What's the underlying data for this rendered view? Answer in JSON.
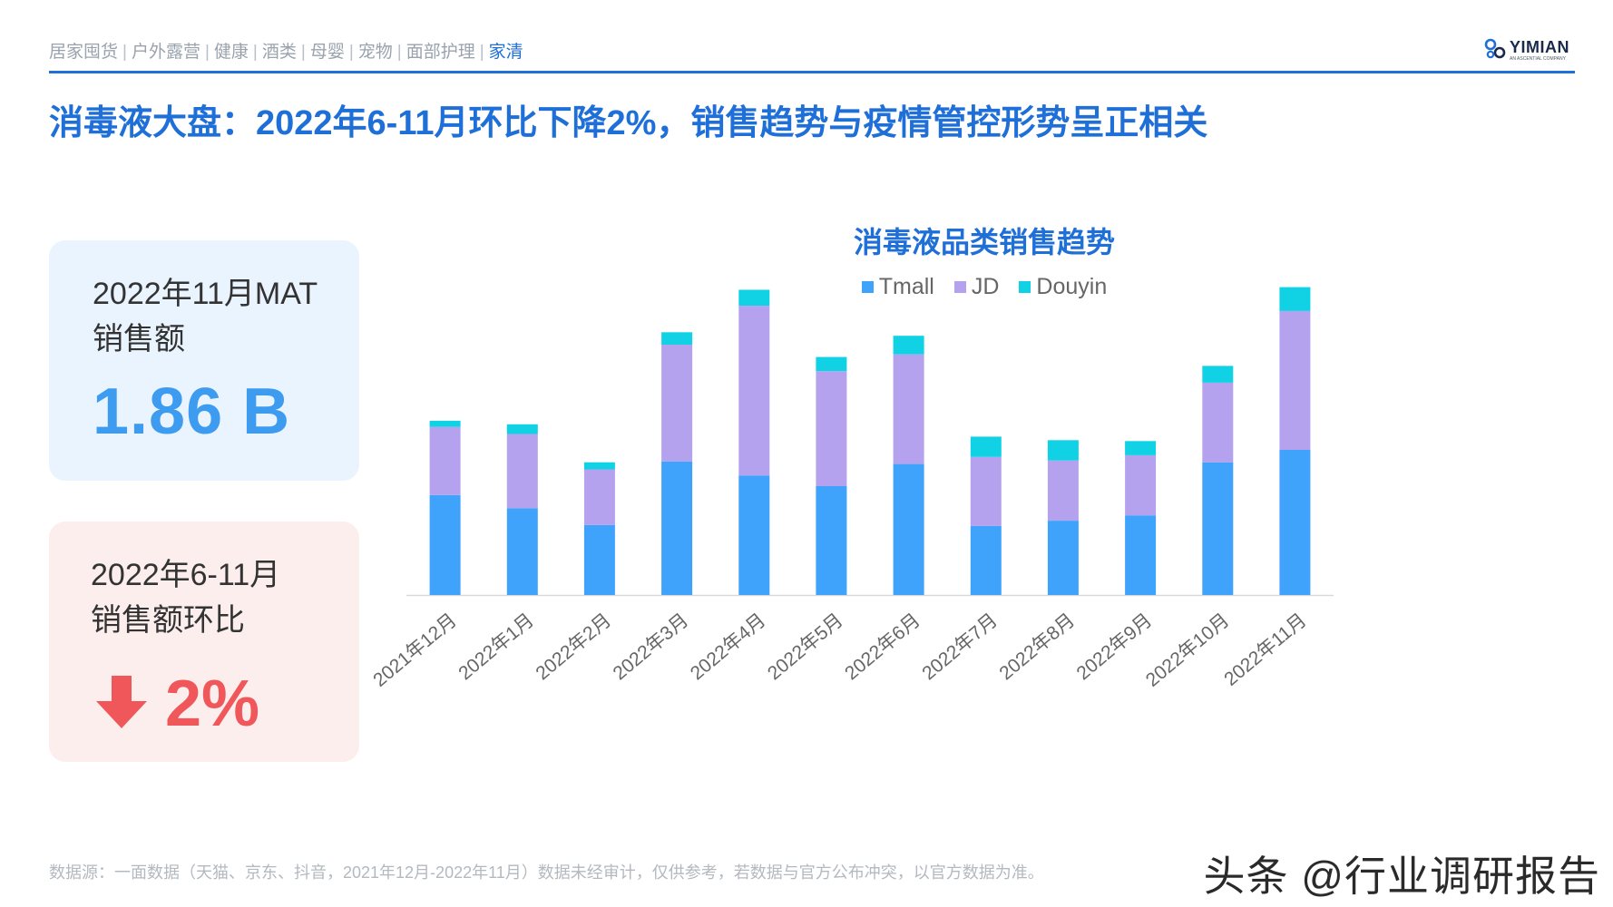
{
  "nav": {
    "items": [
      "居家囤货",
      "户外露营",
      "健康",
      "酒类",
      "母婴",
      "宠物",
      "面部护理",
      "家清"
    ],
    "active_index": 7,
    "separator": "|"
  },
  "brand": {
    "name": "YIMIAN",
    "tagline": "AN ASCENTIAL COMPANY"
  },
  "title": "消毒液大盘：2022年6-11月环比下降2%，销售趋势与疫情管控形势呈正相关",
  "kpi_mat": {
    "label_line1": "2022年11月MAT",
    "label_line2": "销售额",
    "value": "1.86 B"
  },
  "kpi_change": {
    "label_line1": "2022年6-11月",
    "label_line2": "销售额环比",
    "direction_icon": "arrow-down-icon",
    "value": "2%"
  },
  "chart_data": {
    "type": "bar",
    "stacked": true,
    "title": "消毒液品类销售趋势",
    "categories": [
      "2021年12月",
      "2022年1月",
      "2022年2月",
      "2022年3月",
      "2022年4月",
      "2022年5月",
      "2022年6月",
      "2022年7月",
      "2022年8月",
      "2022年9月",
      "2022年10月",
      "2022年11月"
    ],
    "series": [
      {
        "name": "Tmall",
        "color": "#3fa2fb",
        "values": [
          113,
          98,
          79,
          151,
          135,
          123,
          148,
          78,
          84,
          90,
          150,
          164
        ]
      },
      {
        "name": "JD",
        "color": "#b4a2ee",
        "values": [
          77,
          84,
          63,
          132,
          192,
          130,
          124,
          78,
          68,
          68,
          90,
          157
        ]
      },
      {
        "name": "Douyin",
        "color": "#11d2e4",
        "values": [
          7,
          11,
          8,
          14,
          18,
          16,
          21,
          23,
          23,
          16,
          19,
          27
        ]
      }
    ],
    "ylim": [
      0,
      365
    ],
    "grid": false,
    "legend_position": "top-center",
    "show_y_axis": false
  },
  "footer": {
    "source": "数据源：一面数据（天猫、京东、抖音，2021年12月-2022年11月）数据未经审计，仅供参考，若数据与官方公布冲突，以官方数据为准。"
  },
  "watermark": "头条 @行业调研报告"
}
